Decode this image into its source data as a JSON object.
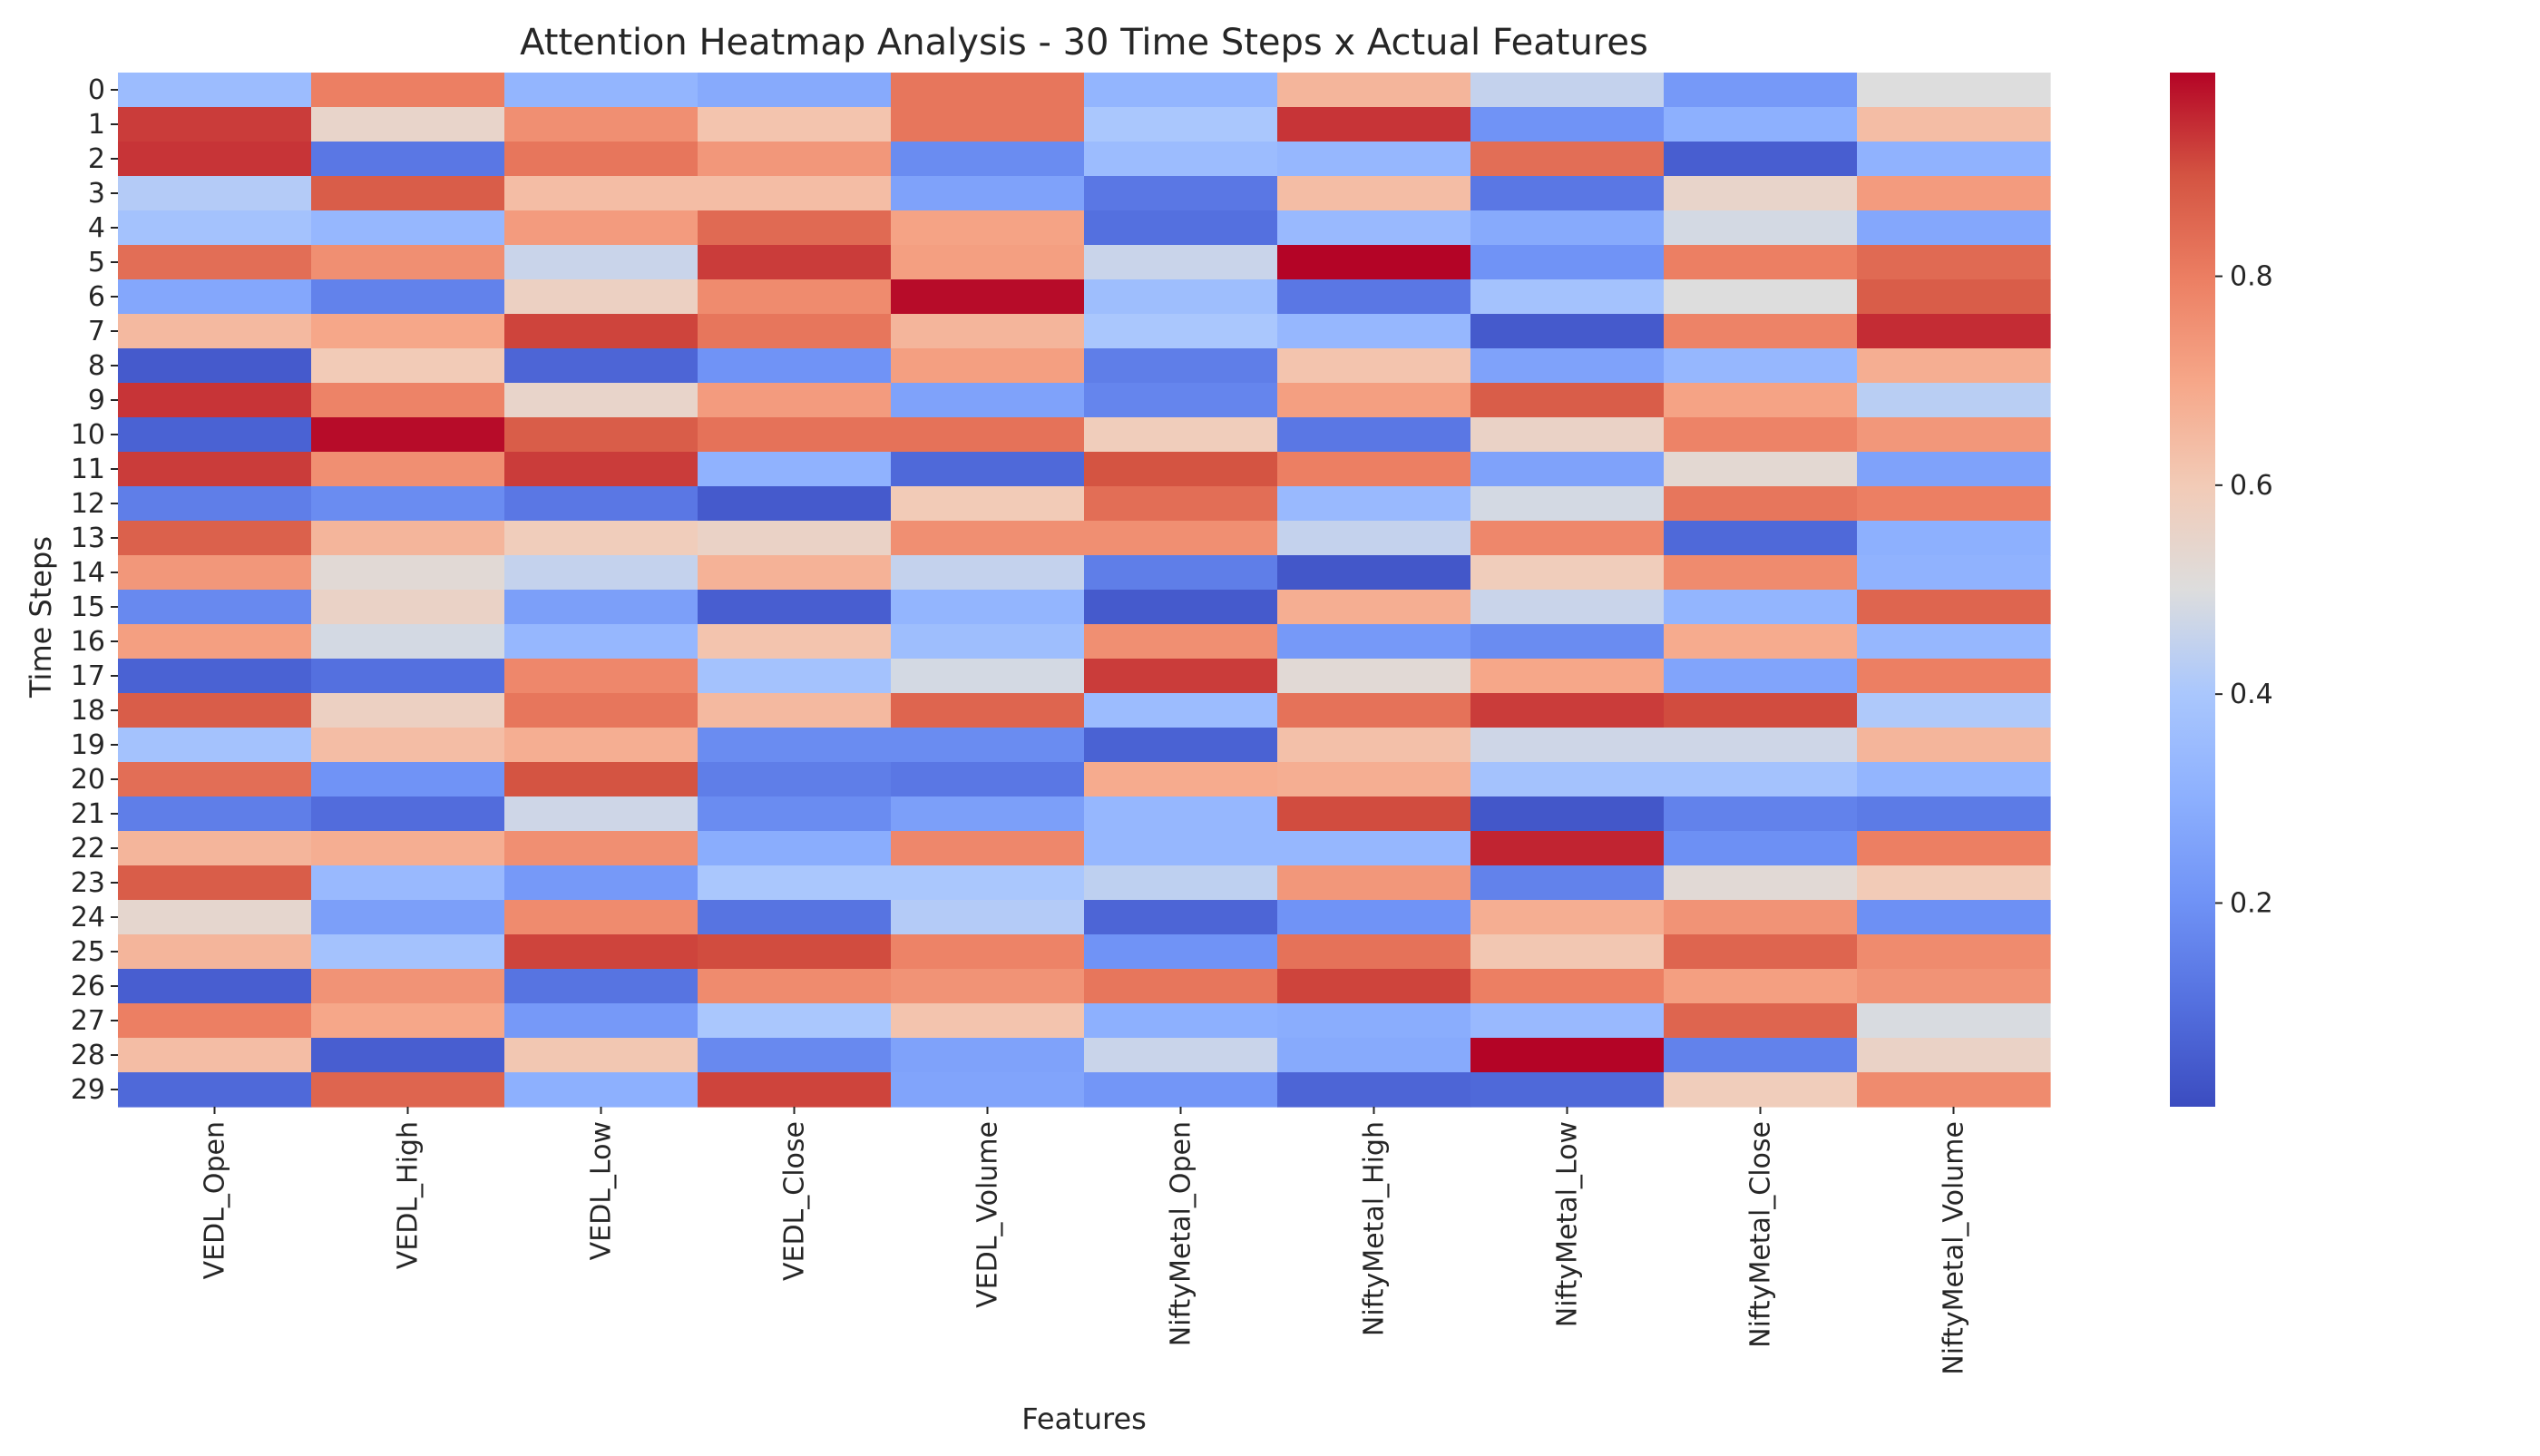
{
  "chart_data": {
    "type": "heatmap",
    "title": "Attention Heatmap Analysis - 30 Time Steps x Actual Features",
    "xlabel": "Features",
    "ylabel": "Time Steps",
    "x": [
      "VEDL_Open",
      "VEDL_High",
      "VEDL_Low",
      "VEDL_Close",
      "VEDL_Volume",
      "NiftyMetal_Open",
      "NiftyMetal_High",
      "NiftyMetal_Low",
      "NiftyMetal_Close",
      "NiftyMetal_Volume"
    ],
    "y": [
      "0",
      "1",
      "2",
      "3",
      "4",
      "5",
      "6",
      "7",
      "8",
      "9",
      "10",
      "11",
      "12",
      "13",
      "14",
      "15",
      "16",
      "17",
      "18",
      "19",
      "20",
      "21",
      "22",
      "23",
      "24",
      "25",
      "26",
      "27",
      "28",
      "29"
    ],
    "values": [
      [
        0.35,
        0.8,
        0.32,
        0.28,
        0.82,
        0.32,
        0.66,
        0.45,
        0.22,
        0.5
      ],
      [
        0.93,
        0.55,
        0.76,
        0.62,
        0.82,
        0.4,
        0.94,
        0.2,
        0.3,
        0.64
      ],
      [
        0.94,
        0.12,
        0.82,
        0.74,
        0.18,
        0.35,
        0.33,
        0.84,
        0.05,
        0.31
      ],
      [
        0.42,
        0.88,
        0.64,
        0.64,
        0.25,
        0.12,
        0.64,
        0.12,
        0.55,
        0.73
      ],
      [
        0.38,
        0.33,
        0.73,
        0.85,
        0.71,
        0.1,
        0.34,
        0.28,
        0.48,
        0.27
      ],
      [
        0.84,
        0.76,
        0.46,
        0.93,
        0.72,
        0.46,
        1.0,
        0.2,
        0.8,
        0.85
      ],
      [
        0.27,
        0.15,
        0.57,
        0.77,
        0.99,
        0.36,
        0.12,
        0.38,
        0.5,
        0.88
      ],
      [
        0.65,
        0.7,
        0.92,
        0.82,
        0.66,
        0.4,
        0.33,
        0.04,
        0.79,
        0.95
      ],
      [
        0.04,
        0.6,
        0.07,
        0.2,
        0.72,
        0.14,
        0.62,
        0.25,
        0.33,
        0.68
      ],
      [
        0.94,
        0.79,
        0.55,
        0.73,
        0.25,
        0.16,
        0.72,
        0.88,
        0.71,
        0.43
      ],
      [
        0.06,
        0.99,
        0.88,
        0.83,
        0.83,
        0.59,
        0.12,
        0.56,
        0.79,
        0.74
      ],
      [
        0.93,
        0.76,
        0.93,
        0.31,
        0.08,
        0.9,
        0.8,
        0.25,
        0.53,
        0.25
      ],
      [
        0.14,
        0.18,
        0.12,
        0.04,
        0.6,
        0.84,
        0.34,
        0.48,
        0.82,
        0.8
      ],
      [
        0.87,
        0.66,
        0.59,
        0.56,
        0.76,
        0.76,
        0.45,
        0.78,
        0.08,
        0.3
      ],
      [
        0.74,
        0.52,
        0.45,
        0.67,
        0.45,
        0.14,
        0.03,
        0.59,
        0.77,
        0.31
      ],
      [
        0.17,
        0.56,
        0.24,
        0.05,
        0.32,
        0.04,
        0.68,
        0.46,
        0.32,
        0.86
      ],
      [
        0.72,
        0.48,
        0.33,
        0.62,
        0.36,
        0.76,
        0.22,
        0.18,
        0.69,
        0.33
      ],
      [
        0.06,
        0.1,
        0.78,
        0.38,
        0.48,
        0.93,
        0.52,
        0.7,
        0.26,
        0.8
      ],
      [
        0.88,
        0.57,
        0.82,
        0.65,
        0.86,
        0.35,
        0.83,
        0.93,
        0.91,
        0.41
      ],
      [
        0.38,
        0.64,
        0.68,
        0.18,
        0.18,
        0.06,
        0.63,
        0.47,
        0.47,
        0.66
      ],
      [
        0.84,
        0.2,
        0.9,
        0.14,
        0.12,
        0.69,
        0.68,
        0.38,
        0.38,
        0.32
      ],
      [
        0.14,
        0.09,
        0.47,
        0.18,
        0.24,
        0.33,
        0.91,
        0.03,
        0.15,
        0.13
      ],
      [
        0.66,
        0.68,
        0.76,
        0.29,
        0.78,
        0.33,
        0.33,
        0.96,
        0.19,
        0.8
      ],
      [
        0.88,
        0.34,
        0.22,
        0.4,
        0.4,
        0.44,
        0.74,
        0.15,
        0.52,
        0.6
      ],
      [
        0.54,
        0.24,
        0.77,
        0.11,
        0.42,
        0.07,
        0.2,
        0.68,
        0.75,
        0.19
      ],
      [
        0.66,
        0.38,
        0.92,
        0.91,
        0.79,
        0.2,
        0.83,
        0.61,
        0.86,
        0.77
      ],
      [
        0.05,
        0.75,
        0.11,
        0.77,
        0.75,
        0.82,
        0.92,
        0.8,
        0.72,
        0.75
      ],
      [
        0.8,
        0.7,
        0.22,
        0.4,
        0.62,
        0.3,
        0.29,
        0.34,
        0.86,
        0.49
      ],
      [
        0.64,
        0.05,
        0.61,
        0.17,
        0.25,
        0.46,
        0.28,
        1.0,
        0.15,
        0.56
      ],
      [
        0.08,
        0.86,
        0.3,
        0.92,
        0.26,
        0.21,
        0.07,
        0.08,
        0.59,
        0.77
      ]
    ],
    "colormap": "coolwarm",
    "vmin": 0.0,
    "vmax": 1.0,
    "colorbar": {
      "ticks": [
        0.2,
        0.4,
        0.6,
        0.8
      ],
      "tick_labels": [
        "0.2",
        "0.4",
        "0.6",
        "0.8"
      ]
    },
    "grid": false,
    "legend": "none"
  }
}
